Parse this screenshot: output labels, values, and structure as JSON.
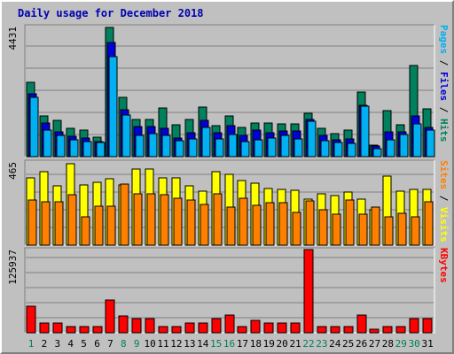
{
  "chart_data": [
    {
      "panel": "pages-files-hits",
      "type": "bar",
      "title": "Daily usage for December 2018",
      "ymax_label": "4431",
      "ylim": [
        0,
        4431
      ],
      "categories": [
        "1",
        "2",
        "3",
        "4",
        "5",
        "6",
        "7",
        "8",
        "9",
        "10",
        "11",
        "12",
        "13",
        "14",
        "15",
        "16",
        "17",
        "18",
        "19",
        "20",
        "21",
        "22",
        "23",
        "24",
        "25",
        "26",
        "27",
        "28",
        "29",
        "30",
        "31"
      ],
      "weekend_color": "#00805c",
      "weekday_color": "#000000",
      "weekend_days": [
        1,
        8,
        9,
        15,
        16,
        22,
        23,
        29,
        30
      ],
      "legend": [
        {
          "text": "Pages",
          "color": "#00b0f0"
        },
        {
          "text": " / ",
          "color": "#000000"
        },
        {
          "text": "Files",
          "color": "#0000d8"
        },
        {
          "text": " / ",
          "color": "#000000"
        },
        {
          "text": "Hits",
          "color": "#00805c"
        }
      ],
      "series": [
        {
          "name": "Hits",
          "color": "#00805c",
          "values": [
            2520,
            1400,
            1230,
            950,
            890,
            650,
            4400,
            2030,
            1260,
            1260,
            1660,
            1090,
            1260,
            1690,
            1060,
            1400,
            990,
            1160,
            1160,
            1130,
            1130,
            1490,
            950,
            780,
            890,
            2190,
            390,
            1560,
            1100,
            3100,
            1630
          ]
        },
        {
          "name": "Files",
          "color": "#0000d8",
          "values": [
            2130,
            1160,
            850,
            680,
            620,
            520,
            3890,
            1590,
            1020,
            1020,
            950,
            640,
            820,
            1230,
            800,
            1060,
            720,
            910,
            820,
            880,
            880,
            1260,
            720,
            570,
            590,
            1740,
            360,
            830,
            840,
            1400,
            1000
          ]
        },
        {
          "name": "Pages",
          "color": "#00b0f0",
          "values": [
            2010,
            890,
            720,
            570,
            520,
            490,
            3420,
            1410,
            730,
            770,
            720,
            530,
            600,
            1000,
            600,
            760,
            520,
            560,
            630,
            720,
            610,
            1220,
            530,
            470,
            460,
            1720,
            270,
            580,
            740,
            1120,
            890
          ]
        }
      ]
    },
    {
      "panel": "visits-sites",
      "type": "bar",
      "ymax_label": "465",
      "ylim": [
        0,
        465
      ],
      "legend": [
        {
          "text": "Sites",
          "color": "#ff8000"
        },
        {
          "text": " / ",
          "color": "#000000"
        },
        {
          "text": "Visits",
          "color": "#ffff00"
        }
      ],
      "series": [
        {
          "name": "Visits",
          "color": "#ffff00",
          "values": [
            375,
            410,
            330,
            455,
            335,
            350,
            370,
            335,
            425,
            425,
            375,
            375,
            330,
            300,
            410,
            395,
            360,
            345,
            315,
            310,
            305,
            255,
            285,
            275,
            295,
            255,
            200,
            385,
            300,
            310,
            310
          ]
        },
        {
          "name": "Sites",
          "color": "#ff8000",
          "values": [
            250,
            240,
            240,
            280,
            160,
            220,
            220,
            340,
            285,
            285,
            280,
            260,
            250,
            230,
            285,
            215,
            260,
            225,
            235,
            235,
            185,
            245,
            200,
            175,
            250,
            175,
            215,
            160,
            180,
            160,
            240
          ]
        }
      ]
    },
    {
      "panel": "kbytes",
      "type": "bar",
      "ymax_label": "125937",
      "ylim": [
        0,
        125937
      ],
      "legend": [
        {
          "text": "KBytes",
          "color": "#ff0000"
        }
      ],
      "series": [
        {
          "name": "KBytes",
          "color": "#ff0000",
          "values": [
            39800,
            14200,
            14200,
            9300,
            9300,
            9300,
            49600,
            24800,
            22000,
            22000,
            9300,
            9300,
            14200,
            14200,
            22000,
            27400,
            9300,
            19200,
            14200,
            14200,
            14200,
            125937,
            9300,
            9300,
            9300,
            27400,
            4700,
            9300,
            9300,
            22000,
            22000
          ]
        }
      ]
    }
  ]
}
